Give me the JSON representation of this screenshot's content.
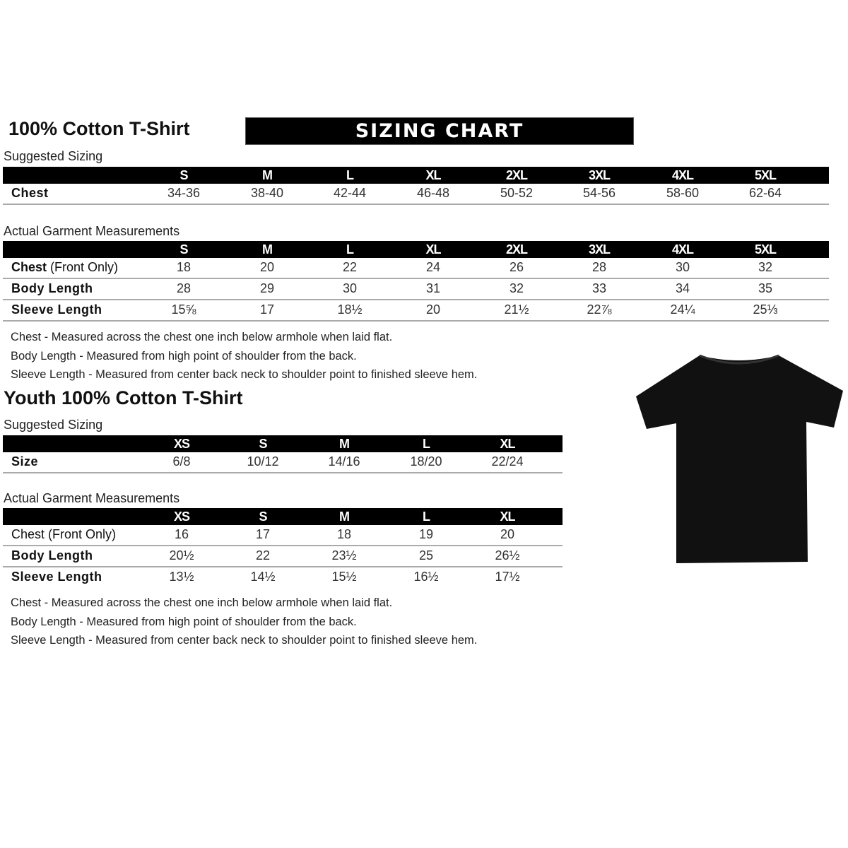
{
  "banner": "SIZING CHART",
  "adult": {
    "title": "100% Cotton T-Shirt",
    "suggested_label": "Suggested Sizing",
    "sizes": [
      "S",
      "M",
      "L",
      "XL",
      "2XL",
      "3XL",
      "4XL",
      "5XL"
    ],
    "suggested_rows": [
      {
        "label": "Chest",
        "values": [
          "34-36",
          "38-40",
          "42-44",
          "46-48",
          "50-52",
          "54-56",
          "58-60",
          "62-64"
        ]
      }
    ],
    "measurements_label": "Actual Garment Measurements",
    "measurement_rows": [
      {
        "label": "Chest (Front Only)",
        "values": [
          "18",
          "20",
          "22",
          "24",
          "26",
          "28",
          "30",
          "32"
        ]
      },
      {
        "label": "Body Length",
        "values": [
          "28",
          "29",
          "30",
          "31",
          "32",
          "33",
          "34",
          "35"
        ]
      },
      {
        "label": "Sleeve Length",
        "values": [
          "15⅝",
          "17",
          "18½",
          "20",
          "21½",
          "22⅞",
          "24¼",
          "25⅓"
        ]
      }
    ],
    "notes": [
      "Chest - Measured across the chest one inch below armhole when laid flat.",
      "Body Length - Measured from high point of shoulder from the back.",
      "Sleeve Length - Measured from center back neck to shoulder point to finished sleeve hem."
    ]
  },
  "youth": {
    "title": "Youth 100% Cotton T-Shirt",
    "suggested_label": "Suggested Sizing",
    "sizes": [
      "XS",
      "S",
      "M",
      "L",
      "XL"
    ],
    "suggested_rows": [
      {
        "label": "Size",
        "values": [
          "6/8",
          "10/12",
          "14/16",
          "18/20",
          "22/24"
        ]
      }
    ],
    "measurements_label": "Actual Garment Measurements",
    "measurement_rows": [
      {
        "label": "Chest (Front Only)",
        "values": [
          "16",
          "17",
          "18",
          "19",
          "20"
        ]
      },
      {
        "label": "Body Length",
        "values": [
          "20½",
          "22",
          "23½",
          "25",
          "26½"
        ]
      },
      {
        "label": "Sleeve Length",
        "values": [
          "13½",
          "14½",
          "15½",
          "16½",
          "17½"
        ]
      }
    ],
    "notes": [
      "Chest - Measured across the chest one inch below armhole when laid flat.",
      "Body Length - Measured from high point of shoulder from the back.",
      "Sleeve Length - Measured from center back neck to shoulder point to finished sleeve hem."
    ]
  },
  "colors": {
    "header_bg": "#000000",
    "shirt": "#111111"
  }
}
